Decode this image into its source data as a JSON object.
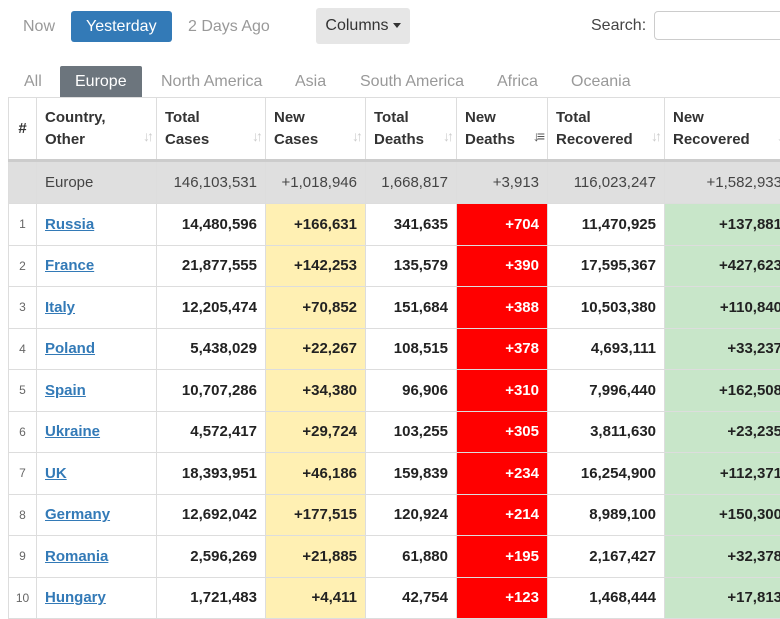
{
  "day_tabs": {
    "now": "Now",
    "yesterday": "Yesterday",
    "two_days": "2 Days Ago"
  },
  "columns_button": "Columns",
  "search": {
    "label": "Search:",
    "value": "",
    "placeholder": ""
  },
  "region_tabs": [
    "All",
    "Europe",
    "North America",
    "Asia",
    "South America",
    "Africa",
    "Oceania"
  ],
  "active_region": "Europe",
  "headers": {
    "idx": "#",
    "country": [
      "Country,",
      "Other"
    ],
    "total_cases": [
      "Total",
      "Cases"
    ],
    "new_cases": [
      "New",
      "Cases"
    ],
    "total_deaths": [
      "Total",
      "Deaths"
    ],
    "new_deaths": [
      "New",
      "Deaths"
    ],
    "total_recovered": [
      "Total",
      "Recovered"
    ],
    "new_recovered": [
      "New",
      "Recovered"
    ]
  },
  "totals": {
    "name": "Europe",
    "total_cases": "146,103,531",
    "new_cases": "+1,018,946",
    "total_deaths": "1,668,817",
    "new_deaths": "+3,913",
    "total_recovered": "116,023,247",
    "new_recovered": "+1,582,933"
  },
  "rows": [
    {
      "idx": "1",
      "country": "Russia",
      "total_cases": "14,480,596",
      "new_cases": "+166,631",
      "total_deaths": "341,635",
      "new_deaths": "+704",
      "total_recovered": "11,470,925",
      "new_recovered": "+137,881"
    },
    {
      "idx": "2",
      "country": "France",
      "total_cases": "21,877,555",
      "new_cases": "+142,253",
      "total_deaths": "135,579",
      "new_deaths": "+390",
      "total_recovered": "17,595,367",
      "new_recovered": "+427,623"
    },
    {
      "idx": "3",
      "country": "Italy",
      "total_cases": "12,205,474",
      "new_cases": "+70,852",
      "total_deaths": "151,684",
      "new_deaths": "+388",
      "total_recovered": "10,503,380",
      "new_recovered": "+110,840"
    },
    {
      "idx": "4",
      "country": "Poland",
      "total_cases": "5,438,029",
      "new_cases": "+22,267",
      "total_deaths": "108,515",
      "new_deaths": "+378",
      "total_recovered": "4,693,111",
      "new_recovered": "+33,237"
    },
    {
      "idx": "5",
      "country": "Spain",
      "total_cases": "10,707,286",
      "new_cases": "+34,380",
      "total_deaths": "96,906",
      "new_deaths": "+310",
      "total_recovered": "7,996,440",
      "new_recovered": "+162,508"
    },
    {
      "idx": "6",
      "country": "Ukraine",
      "total_cases": "4,572,417",
      "new_cases": "+29,724",
      "total_deaths": "103,255",
      "new_deaths": "+305",
      "total_recovered": "3,811,630",
      "new_recovered": "+23,235"
    },
    {
      "idx": "7",
      "country": "UK",
      "total_cases": "18,393,951",
      "new_cases": "+46,186",
      "total_deaths": "159,839",
      "new_deaths": "+234",
      "total_recovered": "16,254,900",
      "new_recovered": "+112,371"
    },
    {
      "idx": "8",
      "country": "Germany",
      "total_cases": "12,692,042",
      "new_cases": "+177,515",
      "total_deaths": "120,924",
      "new_deaths": "+214",
      "total_recovered": "8,989,100",
      "new_recovered": "+150,300"
    },
    {
      "idx": "9",
      "country": "Romania",
      "total_cases": "2,596,269",
      "new_cases": "+21,885",
      "total_deaths": "61,880",
      "new_deaths": "+195",
      "total_recovered": "2,167,427",
      "new_recovered": "+32,378"
    },
    {
      "idx": "10",
      "country": "Hungary",
      "total_cases": "1,721,483",
      "new_cases": "+4,411",
      "total_deaths": "42,754",
      "new_deaths": "+123",
      "total_recovered": "1,468,444",
      "new_recovered": "+17,813"
    }
  ],
  "colors": {
    "primary": "#337ab7",
    "new_cases_bg": "#fff0b3",
    "new_deaths_bg": "#ff0000",
    "new_recovered_bg": "#c8e6c9",
    "active_region_bg": "#6c757d"
  },
  "icons": {
    "sort": "sort-icon",
    "columns_caret": "caret-down-icon"
  }
}
